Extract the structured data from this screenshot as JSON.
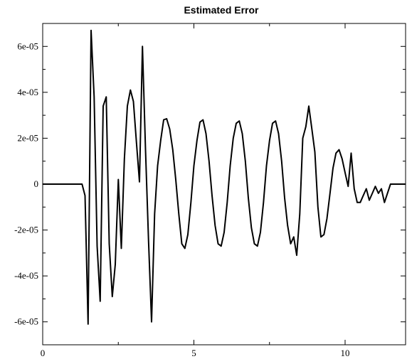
{
  "chart_data": {
    "type": "line",
    "title": "Estimated Error",
    "xlabel": "",
    "ylabel": "",
    "xlim": [
      0,
      12
    ],
    "ylim": [
      -7e-05,
      7e-05
    ],
    "x_ticks": [
      0,
      5,
      10
    ],
    "x_tick_labels": [
      "0",
      "5",
      "10"
    ],
    "y_ticks": [
      -6e-05,
      -4e-05,
      -2e-05,
      0,
      2e-05,
      4e-05,
      6e-05
    ],
    "y_tick_labels": [
      "-6e-05",
      "-4e-05",
      "-2e-05",
      "0",
      "2e-05",
      "4e-05",
      "6e-05"
    ],
    "grid": false,
    "series": [
      {
        "color": "#000000",
        "x": [
          0,
          0.5,
          1.0,
          1.3,
          1.4,
          1.5,
          1.6,
          1.7,
          1.8,
          1.9,
          2.0,
          2.1,
          2.2,
          2.3,
          2.4,
          2.5,
          2.6,
          2.7,
          2.8,
          2.9,
          3.0,
          3.1,
          3.2,
          3.3,
          3.4,
          3.5,
          3.6,
          3.7,
          3.8,
          3.9,
          4.0,
          4.1,
          4.2,
          4.3,
          4.4,
          4.5,
          4.6,
          4.7,
          4.8,
          4.9,
          5.0,
          5.1,
          5.2,
          5.3,
          5.4,
          5.5,
          5.6,
          5.7,
          5.8,
          5.9,
          6.0,
          6.1,
          6.2,
          6.3,
          6.4,
          6.5,
          6.6,
          6.7,
          6.8,
          6.9,
          7.0,
          7.1,
          7.2,
          7.3,
          7.4,
          7.5,
          7.6,
          7.7,
          7.8,
          7.9,
          8.0,
          8.1,
          8.2,
          8.3,
          8.4,
          8.5,
          8.6,
          8.7,
          8.8,
          8.9,
          9.0,
          9.1,
          9.2,
          9.3,
          9.4,
          9.5,
          9.6,
          9.7,
          9.8,
          9.9,
          10.0,
          10.1,
          10.2,
          10.3,
          10.4,
          10.5,
          10.6,
          10.7,
          10.8,
          10.9,
          11.0,
          11.1,
          11.2,
          11.3,
          11.5,
          12.0
        ],
        "y": [
          0,
          0,
          0,
          0,
          -5e-06,
          -6.1e-05,
          6.7e-05,
          3.8e-05,
          -2.7e-05,
          -5.1e-05,
          3.4e-05,
          3.8e-05,
          -2.6e-05,
          -4.9e-05,
          -3.5e-05,
          2e-06,
          -2.8e-05,
          1.1e-05,
          3.4e-05,
          4.1e-05,
          3.6e-05,
          1.8e-05,
          1e-06,
          6e-05,
          1.5e-05,
          -2.5e-05,
          -6e-05,
          -1.3e-05,
          8e-06,
          1.9e-05,
          2.8e-05,
          2.85e-05,
          2.4e-05,
          1.5e-05,
          2e-06,
          -1.3e-05,
          -2.6e-05,
          -2.8e-05,
          -2.2e-05,
          -8e-06,
          8e-06,
          1.9e-05,
          2.7e-05,
          2.8e-05,
          2.2e-05,
          1e-05,
          -5e-06,
          -1.8e-05,
          -2.6e-05,
          -2.7e-05,
          -2.1e-05,
          -8e-06,
          8e-06,
          2e-05,
          2.65e-05,
          2.75e-05,
          2.2e-05,
          1e-05,
          -6e-06,
          -1.9e-05,
          -2.6e-05,
          -2.7e-05,
          -2.1e-05,
          -8e-06,
          8e-06,
          1.9e-05,
          2.65e-05,
          2.75e-05,
          2.2e-05,
          1e-05,
          -6e-06,
          -1.8e-05,
          -2.6e-05,
          -2.3e-05,
          -3.1e-05,
          -1.3e-05,
          2e-05,
          2.5e-05,
          3.4e-05,
          2.4e-05,
          1.4e-05,
          -1e-05,
          -2.3e-05,
          -2.2e-05,
          -1.5e-05,
          -4e-06,
          7e-06,
          1.35e-05,
          1.5e-05,
          1.1e-05,
          5e-06,
          -1e-06,
          1.35e-05,
          -2e-06,
          -8e-06,
          -8e-06,
          -5e-06,
          -2e-06,
          -7e-06,
          -4e-06,
          -1e-06,
          -4e-06,
          -2e-06,
          -8e-06,
          0,
          0
        ]
      }
    ]
  }
}
